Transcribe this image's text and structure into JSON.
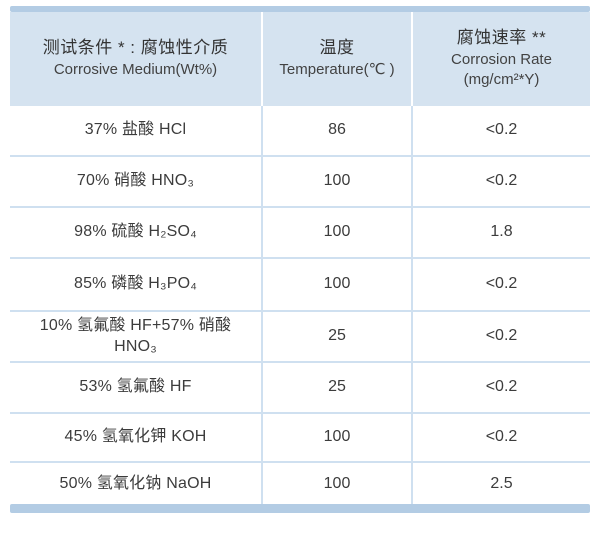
{
  "header": {
    "col1_zh": "测试条件 * : 腐蚀性介质",
    "col1_en": "Corrosive Medium(Wt%)",
    "col2_zh": "温度",
    "col2_en": "Temperature(℃ )",
    "col3_zh": "腐蚀速率 **",
    "col3_en": "Corrosion Rate",
    "col3_unit": "(mg/cm²*Y)"
  },
  "rows": [
    {
      "medium": "37% 盐酸 HCl",
      "temperature": "86",
      "rate": "<0.2"
    },
    {
      "medium": "70% 硝酸 HNO₃",
      "temperature": "100",
      "rate": "<0.2"
    },
    {
      "medium": "98% 硫酸 H₂SO₄",
      "temperature": "100",
      "rate": "1.8"
    },
    {
      "medium": "85% 磷酸 H₃PO₄",
      "temperature": "100",
      "rate": "<0.2"
    },
    {
      "medium": "10% 氢氟酸 HF+57% 硝酸\nHNO₃",
      "temperature": "25",
      "rate": "<0.2"
    },
    {
      "medium": "53% 氢氟酸 HF",
      "temperature": "25",
      "rate": "<0.2"
    },
    {
      "medium": "45% 氢氧化钾 KOH",
      "temperature": "100",
      "rate": "<0.2"
    },
    {
      "medium": "50% 氢氧化钠 NaOH",
      "temperature": "100",
      "rate": "2.5"
    }
  ],
  "colors": {
    "accent_bar": "#b3cce4",
    "header_bg": "#d5e3f0",
    "divider": "#cfe0f0",
    "text": "#3a3a3a"
  },
  "chart_data": {
    "type": "table",
    "title": "测试条件 * : 腐蚀性介质 Corrosive Medium(Wt%) — 腐蚀速率 Corrosion Rate",
    "columns": [
      "测试条件 * : 腐蚀性介质 Corrosive Medium(Wt%)",
      "温度 Temperature(℃)",
      "腐蚀速率 ** Corrosion Rate (mg/cm²*Y)"
    ],
    "rows": [
      [
        "37% 盐酸 HCl",
        86,
        "<0.2"
      ],
      [
        "70% 硝酸 HNO₃",
        100,
        "<0.2"
      ],
      [
        "98% 硫酸 H₂SO₄",
        100,
        "1.8"
      ],
      [
        "85% 磷酸 H₃PO₄",
        100,
        "<0.2"
      ],
      [
        "10% 氢氟酸 HF+57% 硝酸 HNO₃",
        25,
        "<0.2"
      ],
      [
        "53% 氢氟酸 HF",
        25,
        "<0.2"
      ],
      [
        "45% 氢氧化钾 KOH",
        100,
        "<0.2"
      ],
      [
        "50% 氢氧化钠 NaOH",
        100,
        "2.5"
      ]
    ]
  }
}
